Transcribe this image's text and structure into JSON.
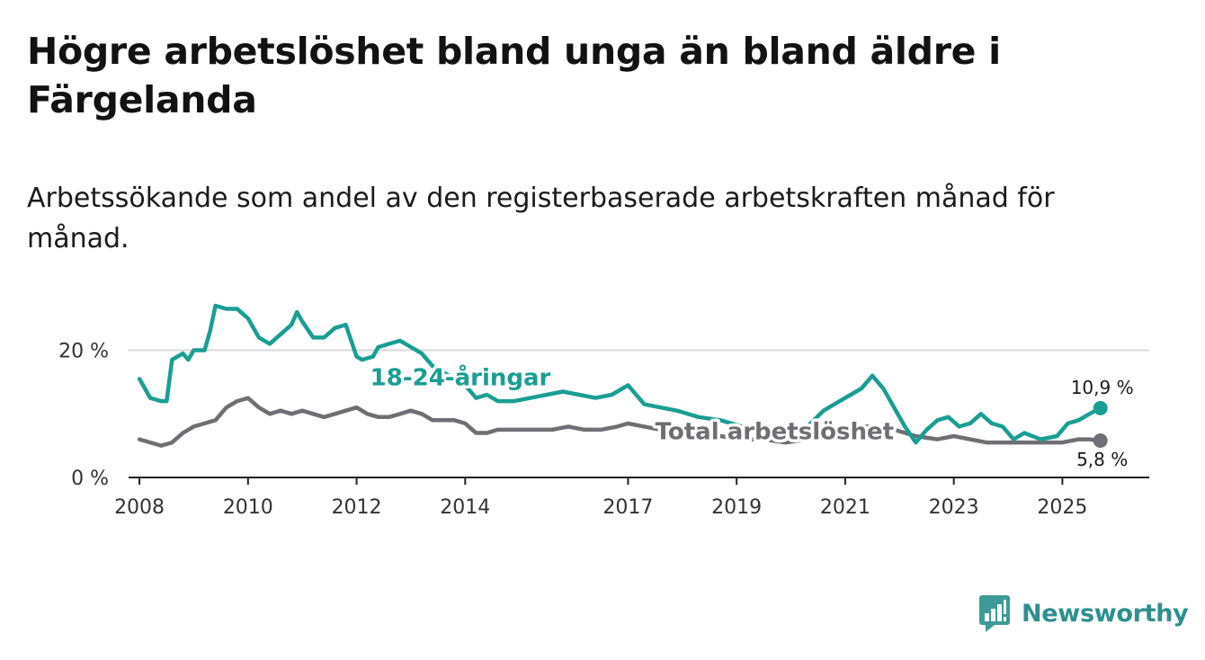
{
  "title": "Högre arbetslöshet bland unga än bland äldre i Färgelanda",
  "subtitle": "Arbetssökande som andel av den registerbaserade arbetskraften månad för månad.",
  "brand": {
    "name": "Newsworthy",
    "icon": "newsworthy-logo-icon"
  },
  "colors": {
    "youth": "#1a9e94",
    "total": "#6e6e74",
    "grid": "#d8d8d8",
    "axis": "#222222"
  },
  "chart_data": {
    "type": "line",
    "title": "Högre arbetslöshet bland unga än bland äldre i Färgelanda",
    "ylabel": "",
    "xlabel": "",
    "ylim": [
      0,
      27
    ],
    "xlim": [
      2007.8,
      2026.6
    ],
    "y_ticks": [
      {
        "value": 0,
        "label": "0 %"
      },
      {
        "value": 20,
        "label": "20 %"
      }
    ],
    "x_ticks": [
      2008,
      2010,
      2012,
      2014,
      2017,
      2019,
      2021,
      2023,
      2025
    ],
    "grid": "horizontal",
    "series": [
      {
        "name": "18-24-åringar",
        "color": "#1a9e94",
        "end_label": "10,9 %",
        "x": [
          2008.0,
          2008.2,
          2008.4,
          2008.5,
          2008.6,
          2008.8,
          2008.9,
          2009.0,
          2009.2,
          2009.3,
          2009.4,
          2009.6,
          2009.8,
          2010.0,
          2010.2,
          2010.4,
          2010.6,
          2010.8,
          2010.9,
          2011.0,
          2011.2,
          2011.4,
          2011.6,
          2011.8,
          2012.0,
          2012.1,
          2012.3,
          2012.4,
          2012.6,
          2012.8,
          2013.0,
          2013.2,
          2013.4,
          2013.7,
          2013.9,
          2014.2,
          2014.4,
          2014.6,
          2014.9,
          2015.2,
          2015.5,
          2015.8,
          2016.1,
          2016.4,
          2016.7,
          2017.0,
          2017.3,
          2017.6,
          2017.9,
          2018.3,
          2018.7,
          2019.1,
          2019.5,
          2019.9,
          2020.3,
          2020.6,
          2020.9,
          2021.1,
          2021.3,
          2021.5,
          2021.7,
          2021.9,
          2022.1,
          2022.3,
          2022.5,
          2022.7,
          2022.9,
          2023.1,
          2023.3,
          2023.5,
          2023.7,
          2023.9,
          2024.1,
          2024.3,
          2024.6,
          2024.9,
          2025.1,
          2025.3,
          2025.5,
          2025.7
        ],
        "values": [
          15.5,
          12.5,
          12.0,
          12.0,
          18.5,
          19.5,
          18.5,
          20.0,
          20.0,
          23.0,
          27.0,
          26.5,
          26.5,
          25.0,
          22.0,
          21.0,
          22.5,
          24.0,
          26.0,
          24.5,
          22.0,
          22.0,
          23.5,
          24.0,
          19.0,
          18.5,
          19.0,
          20.5,
          21.0,
          21.5,
          20.5,
          19.5,
          17.5,
          16.0,
          15.5,
          12.5,
          13.0,
          12.0,
          12.0,
          12.5,
          13.0,
          13.5,
          13.0,
          12.5,
          13.0,
          14.5,
          11.5,
          11.0,
          10.5,
          9.5,
          9.0,
          8.0,
          7.0,
          6.0,
          8.0,
          10.5,
          12.0,
          13.0,
          14.0,
          16.0,
          14.0,
          11.0,
          8.0,
          5.5,
          7.5,
          9.0,
          9.5,
          8.0,
          8.5,
          10.0,
          8.5,
          8.0,
          6.0,
          7.0,
          6.0,
          6.5,
          8.5,
          9.0,
          10.0,
          10.9
        ]
      },
      {
        "name": "Total arbetslöshet",
        "color": "#6e6e74",
        "end_label": "5,8 %",
        "x": [
          2008.0,
          2008.2,
          2008.4,
          2008.6,
          2008.8,
          2009.0,
          2009.2,
          2009.4,
          2009.6,
          2009.8,
          2010.0,
          2010.2,
          2010.4,
          2010.6,
          2010.8,
          2011.0,
          2011.2,
          2011.4,
          2011.6,
          2011.8,
          2012.0,
          2012.2,
          2012.4,
          2012.6,
          2012.8,
          2013.0,
          2013.2,
          2013.4,
          2013.6,
          2013.8,
          2014.0,
          2014.2,
          2014.4,
          2014.6,
          2014.8,
          2015.0,
          2015.3,
          2015.6,
          2015.9,
          2016.2,
          2016.5,
          2016.8,
          2017.0,
          2017.3,
          2017.6,
          2017.9,
          2018.3,
          2018.7,
          2019.1,
          2019.5,
          2019.9,
          2020.3,
          2020.7,
          2021.1,
          2021.5,
          2021.9,
          2022.3,
          2022.7,
          2023.0,
          2023.3,
          2023.6,
          2023.9,
          2024.2,
          2024.5,
          2024.8,
          2025.0,
          2025.3,
          2025.5,
          2025.7
        ],
        "values": [
          6.0,
          5.5,
          5.0,
          5.5,
          7.0,
          8.0,
          8.5,
          9.0,
          11.0,
          12.0,
          12.5,
          11.0,
          10.0,
          10.5,
          10.0,
          10.5,
          10.0,
          9.5,
          10.0,
          10.5,
          11.0,
          10.0,
          9.5,
          9.5,
          10.0,
          10.5,
          10.0,
          9.0,
          9.0,
          9.0,
          8.5,
          7.0,
          7.0,
          7.5,
          7.5,
          7.5,
          7.5,
          7.5,
          8.0,
          7.5,
          7.5,
          8.0,
          8.5,
          8.0,
          7.5,
          7.0,
          6.5,
          6.5,
          6.0,
          6.0,
          5.5,
          6.0,
          7.0,
          8.0,
          8.0,
          7.5,
          6.5,
          6.0,
          6.5,
          6.0,
          5.5,
          5.5,
          5.5,
          5.5,
          5.5,
          5.5,
          6.0,
          6.0,
          5.8
        ]
      }
    ],
    "annotations": [
      {
        "series": "18-24-åringar",
        "text": "18-24-åringar"
      },
      {
        "series": "Total arbetslöshet",
        "text": "Total arbetslöshet"
      }
    ]
  }
}
